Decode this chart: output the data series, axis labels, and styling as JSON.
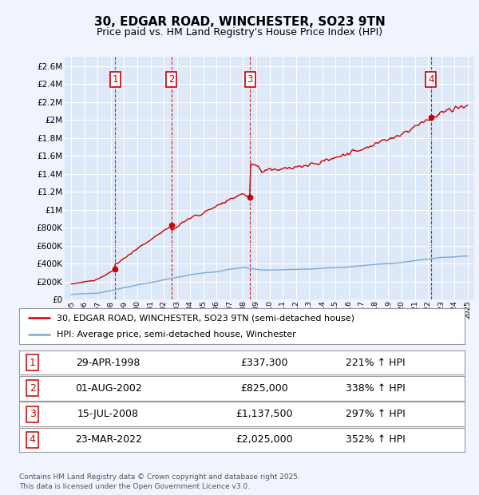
{
  "title": "30, EDGAR ROAD, WINCHESTER, SO23 9TN",
  "subtitle": "Price paid vs. HM Land Registry's House Price Index (HPI)",
  "legend_line1": "30, EDGAR ROAD, WINCHESTER, SO23 9TN (semi-detached house)",
  "legend_line2": "HPI: Average price, semi-detached house, Winchester",
  "footnote": "Contains HM Land Registry data © Crown copyright and database right 2025.\nThis data is licensed under the Open Government Licence v3.0.",
  "transactions": [
    {
      "num": 1,
      "date": "29-APR-1998",
      "price": 337300,
      "hpi_pct": "221% ↑ HPI",
      "year": 1998.33
    },
    {
      "num": 2,
      "date": "01-AUG-2002",
      "price": 825000,
      "hpi_pct": "338% ↑ HPI",
      "year": 2002.58
    },
    {
      "num": 3,
      "date": "15-JUL-2008",
      "price": 1137500,
      "hpi_pct": "297% ↑ HPI",
      "year": 2008.54
    },
    {
      "num": 4,
      "date": "23-MAR-2022",
      "price": 2025000,
      "hpi_pct": "352% ↑ HPI",
      "year": 2022.22
    }
  ],
  "table_rows": [
    [
      "1",
      "29-APR-1998",
      "£337,300",
      "221% ↑ HPI"
    ],
    [
      "2",
      "01-AUG-2002",
      "£825,000",
      "338% ↑ HPI"
    ],
    [
      "3",
      "15-JUL-2008",
      "£1,137,500",
      "297% ↑ HPI"
    ],
    [
      "4",
      "23-MAR-2022",
      "£2,025,000",
      "352% ↑ HPI"
    ]
  ],
  "ylim": [
    0,
    2700000
  ],
  "xlim": [
    1994.5,
    2025.5
  ],
  "ytick_step": 200000,
  "background_color": "#f0f4ff",
  "plot_bg": "#dde8f8",
  "red_color": "#cc0000",
  "blue_color": "#7aaad0",
  "grid_color": "#ffffff",
  "title_fontsize": 11,
  "subtitle_fontsize": 9
}
